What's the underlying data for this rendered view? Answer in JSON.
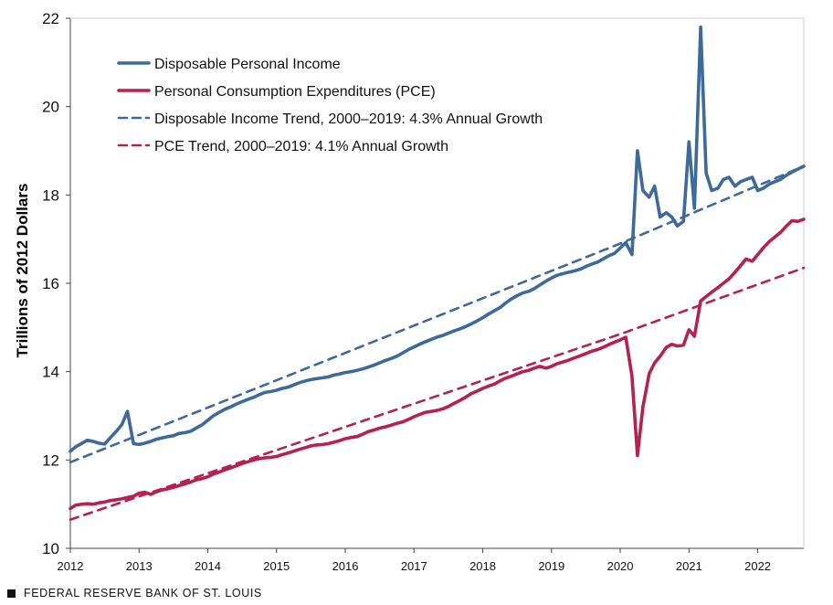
{
  "chart_data": {
    "type": "line",
    "title": "",
    "xlabel": "",
    "ylabel": "Trillions  of 2012 Dollars",
    "xlim": [
      2012,
      2022.67
    ],
    "ylim": [
      10,
      22
    ],
    "x_ticks": [
      "2012",
      "2013",
      "2014",
      "2015",
      "2016",
      "2017",
      "2018",
      "2019",
      "2020",
      "2021",
      "2022"
    ],
    "y_ticks": [
      "10",
      "12",
      "14",
      "16",
      "18",
      "20",
      "22"
    ],
    "grid": false,
    "legend_position": "top-left",
    "colors": {
      "income": "#3d6a9a",
      "pce": "#b52250"
    },
    "series": [
      {
        "name": "Disposable Personal Income",
        "style": "solid",
        "color": "#3d6a9a",
        "x": [
          2012.0,
          2012.08,
          2012.17,
          2012.25,
          2012.33,
          2012.42,
          2012.5,
          2012.58,
          2012.67,
          2012.75,
          2012.83,
          2012.92,
          2013.0,
          2013.08,
          2013.17,
          2013.25,
          2013.33,
          2013.42,
          2013.5,
          2013.58,
          2013.67,
          2013.75,
          2013.83,
          2013.92,
          2014.0,
          2014.08,
          2014.17,
          2014.25,
          2014.33,
          2014.42,
          2014.5,
          2014.58,
          2014.67,
          2014.75,
          2014.83,
          2014.92,
          2015.0,
          2015.08,
          2015.17,
          2015.25,
          2015.33,
          2015.42,
          2015.5,
          2015.58,
          2015.67,
          2015.75,
          2015.83,
          2015.92,
          2016.0,
          2016.08,
          2016.17,
          2016.25,
          2016.33,
          2016.42,
          2016.5,
          2016.58,
          2016.67,
          2016.75,
          2016.83,
          2016.92,
          2017.0,
          2017.08,
          2017.17,
          2017.25,
          2017.33,
          2017.42,
          2017.5,
          2017.58,
          2017.67,
          2017.75,
          2017.83,
          2017.92,
          2018.0,
          2018.08,
          2018.17,
          2018.25,
          2018.33,
          2018.42,
          2018.5,
          2018.58,
          2018.67,
          2018.75,
          2018.83,
          2018.92,
          2019.0,
          2019.08,
          2019.17,
          2019.25,
          2019.33,
          2019.42,
          2019.5,
          2019.58,
          2019.67,
          2019.75,
          2019.83,
          2019.92,
          2020.0,
          2020.08,
          2020.17,
          2020.25,
          2020.33,
          2020.42,
          2020.5,
          2020.58,
          2020.67,
          2020.75,
          2020.83,
          2020.92,
          2021.0,
          2021.08,
          2021.17,
          2021.25,
          2021.33,
          2021.42,
          2021.5,
          2021.58,
          2021.67,
          2021.75,
          2021.83,
          2021.92,
          2022.0,
          2022.08,
          2022.17,
          2022.25,
          2022.33,
          2022.42,
          2022.5,
          2022.58,
          2022.67
        ],
        "values": [
          12.2,
          12.3,
          12.38,
          12.45,
          12.42,
          12.38,
          12.36,
          12.5,
          12.65,
          12.8,
          13.1,
          12.37,
          12.35,
          12.38,
          12.42,
          12.47,
          12.5,
          12.53,
          12.55,
          12.6,
          12.62,
          12.65,
          12.72,
          12.8,
          12.9,
          13.0,
          13.08,
          13.15,
          13.2,
          13.27,
          13.32,
          13.37,
          13.42,
          13.48,
          13.53,
          13.55,
          13.58,
          13.62,
          13.65,
          13.7,
          13.75,
          13.79,
          13.82,
          13.84,
          13.86,
          13.88,
          13.92,
          13.95,
          13.98,
          14.0,
          14.03,
          14.06,
          14.1,
          14.15,
          14.2,
          14.25,
          14.3,
          14.35,
          14.42,
          14.5,
          14.56,
          14.62,
          14.68,
          14.73,
          14.78,
          14.82,
          14.87,
          14.92,
          14.97,
          15.02,
          15.08,
          15.15,
          15.22,
          15.3,
          15.38,
          15.45,
          15.55,
          15.65,
          15.72,
          15.78,
          15.82,
          15.88,
          15.96,
          16.05,
          16.12,
          16.18,
          16.22,
          16.25,
          16.28,
          16.32,
          16.38,
          16.43,
          16.48,
          16.55,
          16.62,
          16.68,
          16.8,
          16.92,
          16.65,
          19.0,
          18.1,
          17.95,
          18.2,
          17.5,
          17.6,
          17.5,
          17.3,
          17.4,
          19.2,
          17.7,
          21.8,
          18.5,
          18.1,
          18.15,
          18.35,
          18.4,
          18.2,
          18.3,
          18.35,
          18.4,
          18.1,
          18.15,
          18.25,
          18.3,
          18.35,
          18.45,
          18.52,
          18.58,
          18.65
        ]
      },
      {
        "name": "Personal Consumption Expenditures (PCE)",
        "style": "solid",
        "color": "#b52250",
        "x": [
          2012.0,
          2012.08,
          2012.17,
          2012.25,
          2012.33,
          2012.42,
          2012.5,
          2012.58,
          2012.67,
          2012.75,
          2012.83,
          2012.92,
          2013.0,
          2013.08,
          2013.17,
          2013.25,
          2013.33,
          2013.42,
          2013.5,
          2013.58,
          2013.67,
          2013.75,
          2013.83,
          2013.92,
          2014.0,
          2014.08,
          2014.17,
          2014.25,
          2014.33,
          2014.42,
          2014.5,
          2014.58,
          2014.67,
          2014.75,
          2014.83,
          2014.92,
          2015.0,
          2015.08,
          2015.17,
          2015.25,
          2015.33,
          2015.42,
          2015.5,
          2015.58,
          2015.67,
          2015.75,
          2015.83,
          2015.92,
          2016.0,
          2016.08,
          2016.17,
          2016.25,
          2016.33,
          2016.42,
          2016.5,
          2016.58,
          2016.67,
          2016.75,
          2016.83,
          2016.92,
          2017.0,
          2017.08,
          2017.17,
          2017.25,
          2017.33,
          2017.42,
          2017.5,
          2017.58,
          2017.67,
          2017.75,
          2017.83,
          2017.92,
          2018.0,
          2018.08,
          2018.17,
          2018.25,
          2018.33,
          2018.42,
          2018.5,
          2018.58,
          2018.67,
          2018.75,
          2018.83,
          2018.92,
          2019.0,
          2019.08,
          2019.17,
          2019.25,
          2019.33,
          2019.42,
          2019.5,
          2019.58,
          2019.67,
          2019.75,
          2019.83,
          2019.92,
          2020.0,
          2020.08,
          2020.17,
          2020.25,
          2020.33,
          2020.42,
          2020.5,
          2020.58,
          2020.67,
          2020.75,
          2020.83,
          2020.92,
          2021.0,
          2021.08,
          2021.17,
          2021.25,
          2021.33,
          2021.42,
          2021.5,
          2021.58,
          2021.67,
          2021.75,
          2021.83,
          2021.92,
          2022.0,
          2022.08,
          2022.17,
          2022.25,
          2022.33,
          2022.42,
          2022.5,
          2022.58,
          2022.67
        ],
        "values": [
          10.9,
          10.98,
          11.0,
          11.01,
          11.0,
          11.03,
          11.05,
          11.08,
          11.1,
          11.12,
          11.15,
          11.18,
          11.25,
          11.27,
          11.22,
          11.28,
          11.32,
          11.35,
          11.38,
          11.42,
          11.46,
          11.5,
          11.55,
          11.58,
          11.62,
          11.68,
          11.73,
          11.78,
          11.82,
          11.87,
          11.92,
          11.96,
          12.0,
          12.03,
          12.05,
          12.06,
          12.08,
          12.12,
          12.16,
          12.2,
          12.24,
          12.28,
          12.32,
          12.34,
          12.35,
          12.37,
          12.4,
          12.44,
          12.48,
          12.51,
          12.53,
          12.58,
          12.64,
          12.68,
          12.72,
          12.75,
          12.79,
          12.83,
          12.86,
          12.92,
          12.98,
          13.03,
          13.08,
          13.1,
          13.12,
          13.16,
          13.21,
          13.28,
          13.35,
          13.42,
          13.5,
          13.56,
          13.62,
          13.67,
          13.72,
          13.79,
          13.85,
          13.9,
          13.95,
          14.0,
          14.03,
          14.08,
          14.12,
          14.08,
          14.12,
          14.18,
          14.22,
          14.26,
          14.31,
          14.36,
          14.41,
          14.46,
          14.5,
          14.55,
          14.61,
          14.67,
          14.72,
          14.78,
          13.9,
          12.1,
          13.2,
          13.95,
          14.2,
          14.35,
          14.55,
          14.62,
          14.58,
          14.6,
          14.95,
          14.8,
          15.6,
          15.7,
          15.8,
          15.9,
          16.0,
          16.1,
          16.25,
          16.4,
          16.55,
          16.5,
          16.65,
          16.8,
          16.95,
          17.05,
          17.15,
          17.3,
          17.42,
          17.4,
          17.45
        ]
      },
      {
        "name": "Disposable Income Trend, 2000–2019: 4.3% Annual Growth",
        "style": "dashed",
        "color": "#3d6a9a",
        "x": [
          2012.0,
          2020.0,
          2022.67
        ],
        "values": [
          11.95,
          16.9,
          18.65
        ]
      },
      {
        "name": "PCE Trend, 2000–2019: 4.1% Annual Growth",
        "style": "dashed",
        "color": "#b52250",
        "x": [
          2012.0,
          2020.0,
          2022.67
        ],
        "values": [
          10.65,
          14.85,
          16.35
        ]
      }
    ]
  },
  "footer": {
    "source_label": "FEDERAL RESERVE BANK OF ST. LOUIS"
  }
}
